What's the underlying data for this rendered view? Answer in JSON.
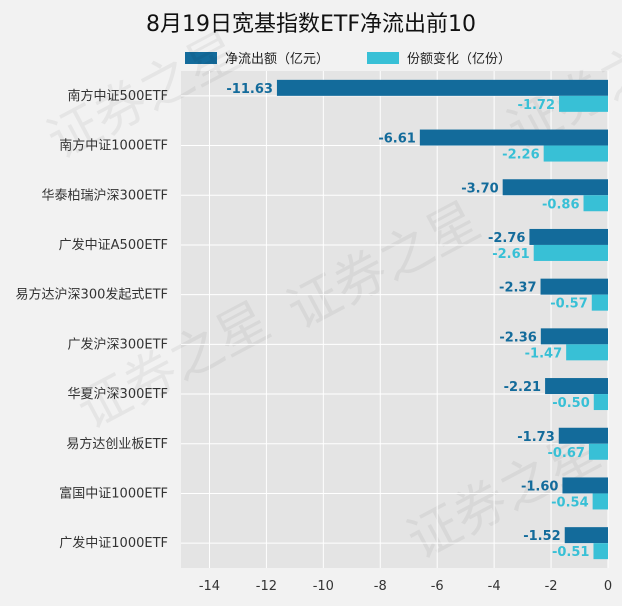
{
  "chart_data": {
    "type": "bar",
    "orientation": "horizontal",
    "title": "8月19日宽基指数ETF净流出前10",
    "categories": [
      "南方中证500ETF",
      "南方中证1000ETF",
      "华泰柏瑞沪深300ETF",
      "广发中证A500ETF",
      "易方达沪深300发起式ETF",
      "广发沪深300ETF",
      "华夏沪深300ETF",
      "易方达创业板ETF",
      "富国中证1000ETF",
      "广发中证1000ETF"
    ],
    "series": [
      {
        "name": "净流出额（亿元）",
        "color": "#136b9b",
        "values": [
          -11.63,
          -6.61,
          -3.7,
          -2.76,
          -2.37,
          -2.36,
          -2.21,
          -1.73,
          -1.6,
          -1.52
        ],
        "labels": [
          "-11.63",
          "-6.61",
          "-3.70",
          "-2.76",
          "-2.37",
          "-2.36",
          "-2.21",
          "-1.73",
          "-1.60",
          "-1.52"
        ]
      },
      {
        "name": "份额变化（亿份）",
        "color": "#38c0d6",
        "values": [
          -1.72,
          -2.26,
          -0.86,
          -2.61,
          -0.57,
          -1.47,
          -0.5,
          -0.67,
          -0.54,
          -0.51
        ],
        "labels": [
          "-1.72",
          "-2.26",
          "-0.86",
          "-2.61",
          "-0.57",
          "-1.47",
          "-0.50",
          "-0.67",
          "-0.54",
          "-0.51"
        ]
      }
    ],
    "xlim": [
      -15,
      0
    ],
    "xticks": [
      -14,
      -12,
      -10,
      -8,
      -6,
      -4,
      -2,
      0
    ],
    "xtick_labels": [
      "-14",
      "-12",
      "-10",
      "-8",
      "-6",
      "-4",
      "-2",
      "0"
    ],
    "grid": true,
    "legend_position": "top"
  },
  "watermark": "证券之星"
}
